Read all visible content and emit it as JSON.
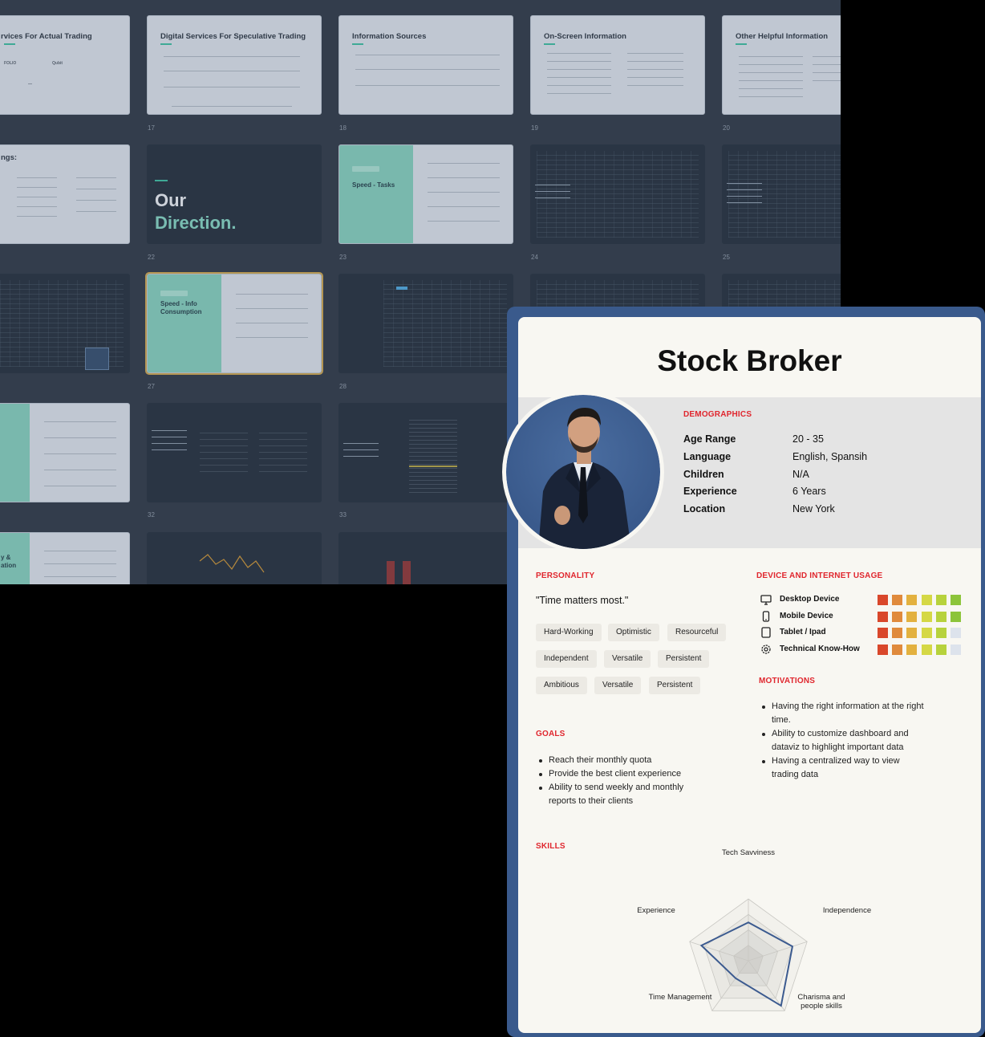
{
  "background_slides": {
    "slide_17": {
      "kicker": "",
      "title": "Digital Services For Speculative Trading",
      "number": "17"
    },
    "slide_16": {
      "title": "rvices For Actual Trading"
    },
    "slide_18": {
      "title": "Information Sources",
      "number": "18"
    },
    "slide_19": {
      "title": "On-Screen Information",
      "number": "19"
    },
    "slide_20": {
      "title": "Other Helpful Information",
      "number": "20"
    },
    "slide_21": {
      "title": "ngs:"
    },
    "slide_22": {
      "title_line1": "Our",
      "title_line2": "Direction.",
      "number": "22"
    },
    "slide_23": {
      "title": "Speed - Tasks",
      "number": "23"
    },
    "slide_24": {
      "number": "24"
    },
    "slide_25": {
      "number": "25"
    },
    "slide_27": {
      "title_line1": "Speed - Info",
      "title_line2": "Consumption",
      "number": "27"
    },
    "slide_28": {
      "number": "28"
    },
    "slide_32": {
      "number": "32"
    },
    "slide_33": {
      "number": "33"
    },
    "slide_36": {
      "title_line1": "y &",
      "title_line2": "ation"
    }
  },
  "persona": {
    "name": "Stock Broker",
    "demographics": {
      "heading": "DEMOGRAPHICS",
      "rows": [
        {
          "label": "Age Range",
          "value": "20 - 35"
        },
        {
          "label": "Language",
          "value": "English, Spansih"
        },
        {
          "label": "Children",
          "value": "N/A"
        },
        {
          "label": "Experience",
          "value": "6 Years"
        },
        {
          "label": "Location",
          "value": "New York"
        }
      ]
    },
    "personality": {
      "heading": "PERSONALITY",
      "quote": "\"Time matters most.\"",
      "traits": [
        "Hard-Working",
        "Optimistic",
        "Resourceful",
        "Independent",
        "Versatile",
        "Persistent",
        "Ambitious",
        "Versatile",
        "Persistent"
      ]
    },
    "goals": {
      "heading": "GOALS",
      "items": [
        "Reach their monthly quota",
        "Provide the best client experience",
        "Ability to send weekly and monthly reports to their clients"
      ]
    },
    "device_usage": {
      "heading": "DEVICE AND INTERNET USAGE",
      "scale_colors": [
        "#d9472b",
        "#e08a3c",
        "#e3b13f",
        "#d5d845",
        "#b7d23c",
        "#8cc43a"
      ],
      "empty_color": "#dde3ec",
      "rows": [
        {
          "label": "Desktop Device",
          "icon": "desktop-icon",
          "level": 6
        },
        {
          "label": "Mobile Device",
          "icon": "mobile-icon",
          "level": 6
        },
        {
          "label": "Tablet / Ipad",
          "icon": "tablet-icon",
          "level": 5
        },
        {
          "label": "Technical Know-How",
          "icon": "gear-icon",
          "level": 5
        }
      ]
    },
    "motivations": {
      "heading": "MOTIVATIONS",
      "items": [
        "Having the right information at the right time.",
        "Ability to customize dashboard and dataviz to highlight important data",
        "Having a centralized way to view trading data"
      ]
    },
    "skills": {
      "heading": "SKILLS",
      "axes": [
        "Tech  Savviness",
        "Independence",
        "Charisma and people skills",
        "Time Management",
        "Experience"
      ],
      "values": [
        0.62,
        0.75,
        0.9,
        0.35,
        0.8
      ],
      "max": 1
    }
  }
}
